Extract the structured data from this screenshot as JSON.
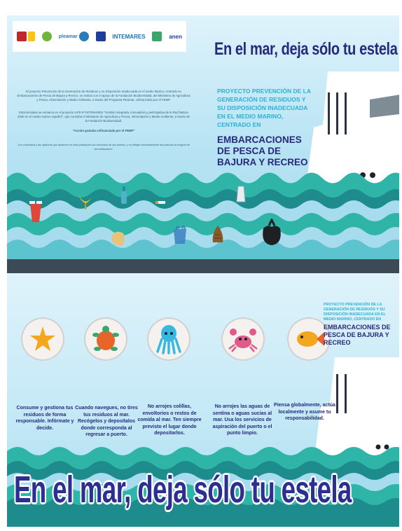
{
  "logos": {
    "ministry": "MINISTERIO DE AGRICULTURA",
    "pleamar": "pleamar",
    "pleamar_prefix": "PROGRAMA",
    "eu": "Unión Europea",
    "fund": "Fundación Biodiversidad",
    "intemares": "INTEMARES",
    "anen": "anen"
  },
  "top": {
    "title": "En el mar, deja sólo tu estela",
    "project_subtitle": "PROYECTO PREVENCIÓN DE LA GENERACIÓN DE RESIDUOS Y SU DISPOSICIÓN INADECUADA EN EL MEDIO MARINO, CENTRADO EN",
    "project_main": "EMBARCACIONES DE PESCA DE BAJURA Y RECREO",
    "paragraph_1": "El proyecto Prevención de la Generación de Residuos y su Disposición Inadecuada en el medio Marino, centrado en Embarcaciones de Pesca de Bajura y Recreo, se realiza con el apoyo de la Fundación Biodiversidad, del Ministerio de Agricultura y Pesca, Alimentación y Medio Ambiente, a través del Programa Pleamar, cofinanciado por el FEMP.",
    "paragraph_2": "Esta iniciativa se enmarca en el proyecto LIFE-IP INTEMARES \"Gestión integrada, innovadora y participativa de la Red Natura 2000 en el medio marino español\", que coordina el Ministerio de Agricultura y Pesca, Alimentación y Medio Ambiente, a través de la Fundación Biodiversidad.",
    "cofinanced": "\"Acción gratuita cofinanciada por el FEMP\"",
    "disclaimer": "\"Los contenidos y las opiniones que aparecen en esta publicación son exclusivos de sus autores, y no reflejan necesariamente las posturas de ninguna de las instituciones\""
  },
  "tips": [
    {
      "icon": "starfish-icon",
      "caption": "Consume y gestiona tus residuos de forma responsable. Infórmate y decide."
    },
    {
      "icon": "turtle-icon",
      "caption": "Cuando navegues, no tires tus residuos al mar. Recógelos y deposítalos donde corresponda al regresar a puerto."
    },
    {
      "icon": "octopus-icon",
      "caption": "No arrojes colillas, envoltorios o restos de comida al mar. Ten siempre previsto el lugar donde depositarlos."
    },
    {
      "icon": "crab-icon",
      "caption": "No arrojes las aguas de sentina o aguas sucias al mar. Usa los servicios de aspiración del puerto o el punto limpio."
    },
    {
      "icon": "fish-icon",
      "caption": "Piensa globalmente, actúa localmente y asume tu responsabilidad."
    }
  ],
  "bottom": {
    "project_subtitle": "PROYECTO PREVENCIÓN DE LA GENERACIÓN DE RESIDUOS Y SU DISPOSICIÓN INADECUADA EN EL MEDIO MARINO, CENTRADO EN",
    "project_main": "EMBARCACIONES DE PESCA DE BAJURA Y RECREO",
    "big_title": "En el mar, deja sólo tu estela"
  },
  "colors": {
    "navy": "#262a7a",
    "cyan": "#2bb0d8",
    "sea": "#35b3b0",
    "sea_dark": "#1e8c8c",
    "sky": "#b7e3f4"
  }
}
